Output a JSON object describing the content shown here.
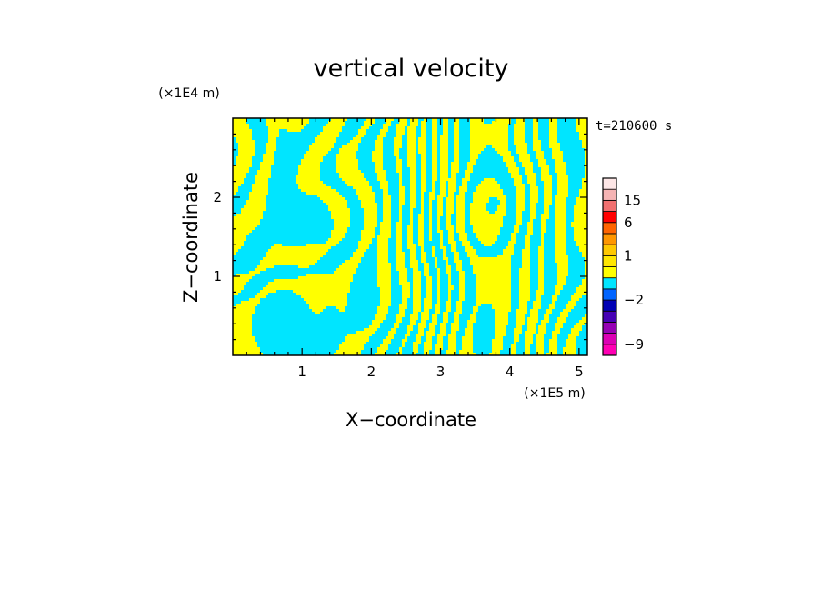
{
  "chart_data": {
    "type": "heatmap",
    "title": "vertical velocity",
    "xlabel": "X−coordinate",
    "ylabel": "Z−coordinate",
    "x_unit": "(×1E5 m)",
    "y_unit": "(×1E4 m)",
    "time_label": "t=210600 s",
    "xlim": [
      0,
      5.12
    ],
    "ylim": [
      0,
      3.0
    ],
    "x_ticks": [
      1,
      2,
      3,
      4,
      5
    ],
    "y_ticks": [
      1,
      2
    ],
    "x_tick_labels": [
      "1",
      "2",
      "3",
      "4",
      "5"
    ],
    "y_tick_labels": [
      "1",
      "2"
    ],
    "field_colors": {
      "positive": "#ffff00",
      "negative": "#00e5ff"
    },
    "colorbar": {
      "labels": [
        {
          "text": "−9",
          "value": -9
        },
        {
          "text": "−2",
          "value": -2
        },
        {
          "text": "1",
          "value": 1
        },
        {
          "text": "6",
          "value": 6
        },
        {
          "text": "15",
          "value": 15
        }
      ],
      "bins": [
        {
          "lo": -12,
          "hi": -9,
          "color": "#ff00b4"
        },
        {
          "lo": -9,
          "hi": -6,
          "color": "#dc00b4"
        },
        {
          "lo": -6,
          "hi": -4,
          "color": "#9600b4"
        },
        {
          "lo": -4,
          "hi": -3,
          "color": "#4600b4"
        },
        {
          "lo": -3,
          "hi": -2,
          "color": "#0000b4"
        },
        {
          "lo": -2,
          "hi": -1,
          "color": "#0064ff"
        },
        {
          "lo": -1,
          "hi": 0,
          "color": "#00e5ff"
        },
        {
          "lo": 0,
          "hi": 0.5,
          "color": "#ffff00"
        },
        {
          "lo": 0.5,
          "hi": 1,
          "color": "#ffe600"
        },
        {
          "lo": 1,
          "hi": 2,
          "color": "#ffc800"
        },
        {
          "lo": 2,
          "hi": 4,
          "color": "#ff9600"
        },
        {
          "lo": 4,
          "hi": 6,
          "color": "#ff6400"
        },
        {
          "lo": 6,
          "hi": 10,
          "color": "#ff0000"
        },
        {
          "lo": 10,
          "hi": 15,
          "color": "#f07070"
        },
        {
          "lo": 15,
          "hi": 20,
          "color": "#f5b4b4"
        },
        {
          "lo": 20,
          "hi": 30,
          "color": "#fde6e6"
        }
      ]
    }
  }
}
